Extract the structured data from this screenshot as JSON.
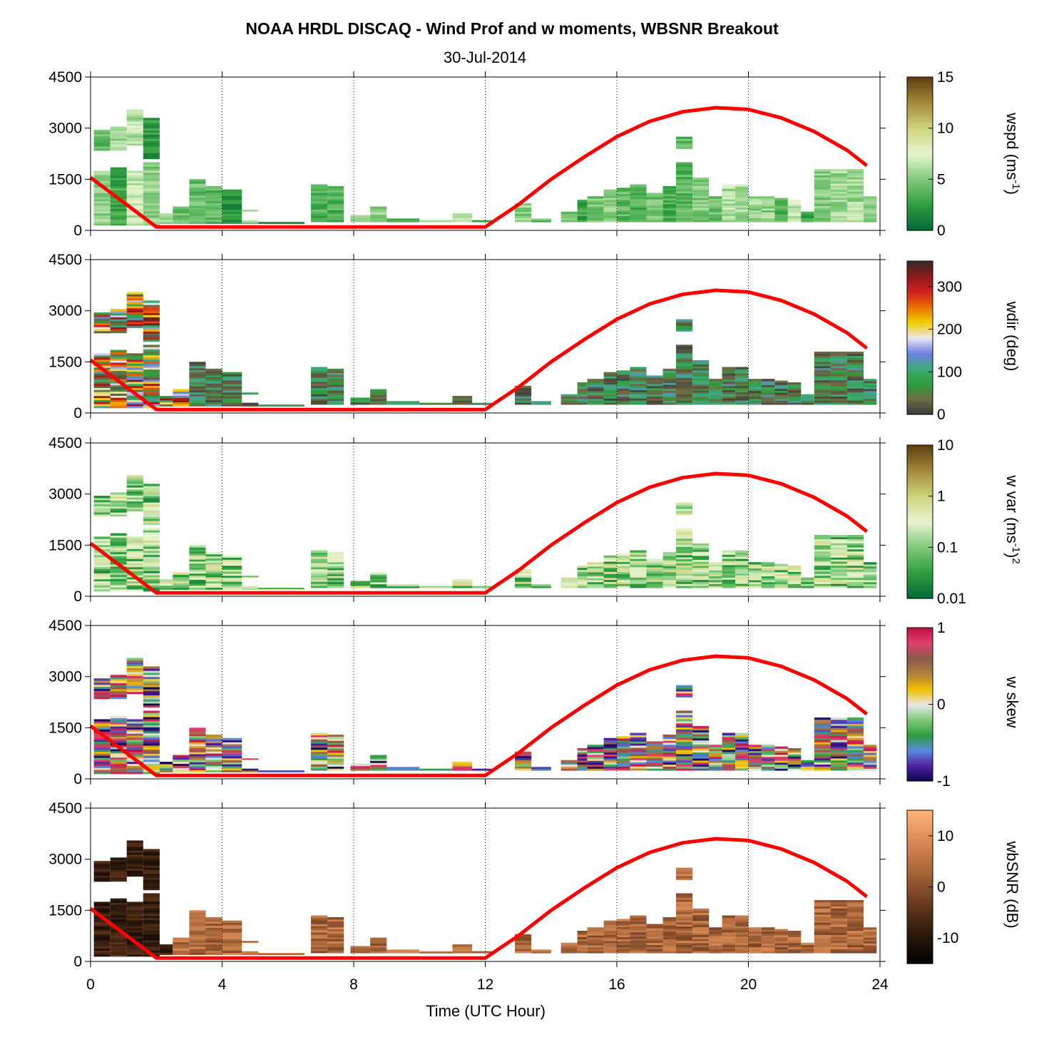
{
  "title": "NOAA HRDL DISCAQ - Wind Prof and w moments, WBSNR Breakout",
  "subtitle": "30-Jul-2014",
  "xlabel": "Time (UTC Hour)",
  "colors": {
    "fit_line": "#ff0000",
    "grid": "#000000"
  },
  "chart_data": [
    {
      "type": "heatmap",
      "name": "wspd",
      "cbar_label": "wspd (ms",
      "cbar_sup": "-1",
      "cbar_tail": ")",
      "cbar_ticks": [
        "0",
        "5",
        "10",
        "15"
      ],
      "cbar_values": [
        0,
        5,
        10,
        15
      ],
      "clim": [
        0,
        15
      ],
      "colormap": [
        "#006837",
        "#2e9e3d",
        "#7fc97a",
        "#e7f5d0",
        "#cfd47c",
        "#a48a3a",
        "#5e3c10"
      ]
    },
    {
      "type": "heatmap",
      "name": "wdir",
      "cbar_label": "wdir (deg)",
      "cbar_ticks": [
        "0",
        "100",
        "200",
        "300"
      ],
      "cbar_values": [
        0,
        100,
        200,
        300
      ],
      "clim": [
        0,
        360
      ],
      "colormap": [
        "#3a3a3a",
        "#6f6a45",
        "#2e9e3d",
        "#3fa87a",
        "#6f7fe0",
        "#e8e8f0",
        "#f2d000",
        "#e87000",
        "#d02020",
        "#8a1a1a",
        "#3a2a2a"
      ]
    },
    {
      "type": "heatmap",
      "name": "w var",
      "cbar_label": "w var (ms",
      "cbar_sup": "-1",
      "cbar_tail": ")",
      "cbar_sup2": "2",
      "cbar_ticks": [
        "0.01",
        "0.1",
        "1",
        "10"
      ],
      "cbar_values": [
        0.01,
        0.1,
        1,
        10
      ],
      "clim": [
        0.01,
        10
      ],
      "log_scale": true,
      "colormap": [
        "#006837",
        "#2e9e3d",
        "#7fc97a",
        "#e7f5d0",
        "#cfd47c",
        "#a48a3a",
        "#5e3c10"
      ]
    },
    {
      "type": "heatmap",
      "name": "w skew",
      "cbar_label": "w skew",
      "cbar_ticks": [
        "-1",
        "0",
        "1"
      ],
      "cbar_values": [
        -1,
        0,
        1
      ],
      "clim": [
        -1,
        1
      ],
      "colormap": [
        "#0a0a50",
        "#5020a0",
        "#5a8ae0",
        "#2e9e3d",
        "#7fc97a",
        "#e8e8e8",
        "#f0c000",
        "#b08040",
        "#8a5a4a",
        "#e04070",
        "#c01040"
      ]
    },
    {
      "type": "heatmap",
      "name": "wbSNR",
      "cbar_label": "wbSNR (dB)",
      "cbar_ticks": [
        "-10",
        "0",
        "10"
      ],
      "cbar_values": [
        -10,
        0,
        10
      ],
      "clim": [
        -15,
        15
      ],
      "colormap": [
        "#000000",
        "#2e1a0c",
        "#6a3a1e",
        "#a8653a",
        "#d88a55",
        "#ffb47a"
      ]
    }
  ],
  "axes": {
    "x_ticks": [
      0,
      4,
      8,
      12,
      16,
      20,
      24
    ],
    "x_tick_labels": [
      "0",
      "4",
      "8",
      "12",
      "16",
      "20",
      "24"
    ],
    "xlim": [
      0,
      24
    ],
    "y_ticks": [
      0,
      1500,
      3000,
      4500
    ],
    "y_tick_labels": [
      "0",
      "1500",
      "3000",
      "4500"
    ],
    "ylim": [
      0,
      4500
    ],
    "grid_x": [
      4,
      8,
      12,
      16,
      20,
      24
    ],
    "grid_style": "dotted vertical"
  },
  "mixing_height_line": {
    "x": [
      0,
      2,
      12,
      13,
      14,
      15,
      16,
      17,
      18,
      19,
      20,
      21,
      22,
      23,
      23.6
    ],
    "y": [
      1550,
      100,
      100,
      750,
      1500,
      2150,
      2750,
      3200,
      3480,
      3600,
      3550,
      3300,
      2900,
      2350,
      1900
    ]
  },
  "profile_columns": [
    {
      "t0": 0.1,
      "t1": 0.6,
      "ranges": [
        [
          150,
          1750
        ],
        [
          2350,
          2950
        ]
      ]
    },
    {
      "t0": 0.6,
      "t1": 1.1,
      "ranges": [
        [
          150,
          1850
        ],
        [
          2350,
          3050
        ]
      ]
    },
    {
      "t0": 1.1,
      "t1": 1.6,
      "ranges": [
        [
          150,
          1750
        ],
        [
          2500,
          3550
        ]
      ]
    },
    {
      "t0": 1.6,
      "t1": 2.1,
      "ranges": [
        [
          150,
          2000
        ],
        [
          2100,
          3300
        ]
      ]
    },
    {
      "t0": 2.1,
      "t1": 2.5,
      "ranges": [
        [
          200,
          500
        ]
      ]
    },
    {
      "t0": 2.5,
      "t1": 3.0,
      "ranges": [
        [
          200,
          700
        ]
      ]
    },
    {
      "t0": 3.0,
      "t1": 3.5,
      "ranges": [
        [
          200,
          1500
        ]
      ]
    },
    {
      "t0": 3.5,
      "t1": 4.0,
      "ranges": [
        [
          200,
          1300
        ]
      ]
    },
    {
      "t0": 4.0,
      "t1": 4.6,
      "ranges": [
        [
          200,
          1200
        ]
      ]
    },
    {
      "t0": 4.6,
      "t1": 5.1,
      "ranges": [
        [
          200,
          300
        ],
        [
          550,
          600
        ]
      ]
    },
    {
      "t0": 5.1,
      "t1": 6.5,
      "ranges": [
        [
          200,
          250
        ]
      ]
    },
    {
      "t0": 6.7,
      "t1": 7.2,
      "ranges": [
        [
          250,
          1350
        ]
      ]
    },
    {
      "t0": 7.2,
      "t1": 7.7,
      "ranges": [
        [
          250,
          1300
        ]
      ]
    },
    {
      "t0": 7.9,
      "t1": 8.5,
      "ranges": [
        [
          250,
          450
        ]
      ]
    },
    {
      "t0": 8.5,
      "t1": 9.0,
      "ranges": [
        [
          250,
          700
        ]
      ]
    },
    {
      "t0": 9.0,
      "t1": 10.0,
      "ranges": [
        [
          250,
          350
        ]
      ]
    },
    {
      "t0": 10.0,
      "t1": 11.0,
      "ranges": [
        [
          250,
          300
        ]
      ]
    },
    {
      "t0": 11.0,
      "t1": 11.6,
      "ranges": [
        [
          250,
          500
        ]
      ]
    },
    {
      "t0": 11.6,
      "t1": 12.2,
      "ranges": [
        [
          250,
          300
        ]
      ]
    },
    {
      "t0": 12.9,
      "t1": 13.4,
      "ranges": [
        [
          250,
          800
        ]
      ]
    },
    {
      "t0": 13.4,
      "t1": 14.0,
      "ranges": [
        [
          250,
          350
        ]
      ]
    },
    {
      "t0": 14.3,
      "t1": 14.8,
      "ranges": [
        [
          250,
          550
        ]
      ]
    },
    {
      "t0": 14.8,
      "t1": 15.1,
      "ranges": [
        [
          250,
          900
        ]
      ]
    },
    {
      "t0": 15.1,
      "t1": 15.6,
      "ranges": [
        [
          250,
          1000
        ]
      ]
    },
    {
      "t0": 15.6,
      "t1": 16.0,
      "ranges": [
        [
          250,
          1200
        ]
      ]
    },
    {
      "t0": 16.0,
      "t1": 16.4,
      "ranges": [
        [
          250,
          1250
        ]
      ]
    },
    {
      "t0": 16.4,
      "t1": 16.9,
      "ranges": [
        [
          250,
          1350
        ]
      ]
    },
    {
      "t0": 16.9,
      "t1": 17.4,
      "ranges": [
        [
          250,
          1100
        ]
      ]
    },
    {
      "t0": 17.4,
      "t1": 17.8,
      "ranges": [
        [
          250,
          1300
        ]
      ]
    },
    {
      "t0": 17.8,
      "t1": 18.3,
      "ranges": [
        [
          250,
          2000
        ],
        [
          2400,
          2750
        ]
      ]
    },
    {
      "t0": 18.3,
      "t1": 18.8,
      "ranges": [
        [
          250,
          1550
        ]
      ]
    },
    {
      "t0": 18.8,
      "t1": 19.2,
      "ranges": [
        [
          250,
          1000
        ]
      ]
    },
    {
      "t0": 19.2,
      "t1": 19.6,
      "ranges": [
        [
          250,
          1350
        ]
      ]
    },
    {
      "t0": 19.6,
      "t1": 20.0,
      "ranges": [
        [
          250,
          1350
        ]
      ]
    },
    {
      "t0": 20.0,
      "t1": 20.4,
      "ranges": [
        [
          250,
          1000
        ]
      ]
    },
    {
      "t0": 20.4,
      "t1": 20.8,
      "ranges": [
        [
          250,
          1000
        ]
      ]
    },
    {
      "t0": 20.8,
      "t1": 21.2,
      "ranges": [
        [
          250,
          950
        ]
      ]
    },
    {
      "t0": 21.2,
      "t1": 21.6,
      "ranges": [
        [
          250,
          900
        ]
      ]
    },
    {
      "t0": 21.6,
      "t1": 22.0,
      "ranges": [
        [
          250,
          550
        ]
      ]
    },
    {
      "t0": 22.0,
      "t1": 22.5,
      "ranges": [
        [
          250,
          1800
        ]
      ]
    },
    {
      "t0": 22.5,
      "t1": 23.0,
      "ranges": [
        [
          250,
          1800
        ]
      ]
    },
    {
      "t0": 23.0,
      "t1": 23.5,
      "ranges": [
        [
          250,
          1800
        ]
      ]
    },
    {
      "t0": 23.5,
      "t1": 23.9,
      "ranges": [
        [
          250,
          1000
        ]
      ]
    }
  ]
}
